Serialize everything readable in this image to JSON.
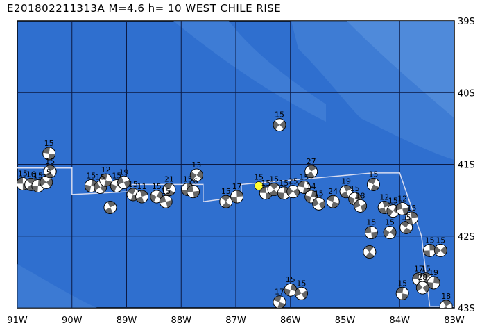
{
  "title": "E201802211313A  M=4.6  h= 10  WEST CHILE RISE",
  "map": {
    "lon_range": [
      -91,
      -83
    ],
    "lat_range": [
      -43,
      -39
    ],
    "lon_labels": [
      "91W",
      "90W",
      "89W",
      "88W",
      "87W",
      "86W",
      "85W",
      "84W",
      "83W"
    ],
    "lat_labels": [
      "39S",
      "40S",
      "41S",
      "42S",
      "43S"
    ],
    "colors": {
      "ocean": "#2f6fcf",
      "shallow": "#4a86d8",
      "grid": "#0b1a44",
      "ridge": "#d8dcf0",
      "highlight": "#ffff33"
    },
    "main_event": {
      "lon": -86.58,
      "lat": -41.3,
      "label": "15"
    },
    "events": [
      {
        "lon": -90.9,
        "lat": -41.27,
        "label": "15"
      },
      {
        "lon": -90.75,
        "lat": -41.28,
        "label": "16"
      },
      {
        "lon": -90.62,
        "lat": -41.3,
        "label": "15"
      },
      {
        "lon": -90.47,
        "lat": -41.25,
        "label": "15"
      },
      {
        "lon": -90.42,
        "lat": -40.85,
        "label": "15"
      },
      {
        "lon": -90.4,
        "lat": -41.1,
        "label": "15"
      },
      {
        "lon": -89.65,
        "lat": -41.3,
        "label": "15"
      },
      {
        "lon": -89.48,
        "lat": -41.32,
        "label": "15"
      },
      {
        "lon": -89.38,
        "lat": -41.22,
        "label": "12"
      },
      {
        "lon": -89.3,
        "lat": -41.6,
        "label": ""
      },
      {
        "lon": -89.18,
        "lat": -41.3,
        "label": "15"
      },
      {
        "lon": -89.05,
        "lat": -41.25,
        "label": "19"
      },
      {
        "lon": -88.88,
        "lat": -41.42,
        "label": "15"
      },
      {
        "lon": -88.72,
        "lat": -41.45,
        "label": "11"
      },
      {
        "lon": -88.45,
        "lat": -41.45,
        "label": "15"
      },
      {
        "lon": -88.28,
        "lat": -41.52,
        "label": "15"
      },
      {
        "lon": -88.22,
        "lat": -41.35,
        "label": "21"
      },
      {
        "lon": -87.88,
        "lat": -41.35,
        "label": "15"
      },
      {
        "lon": -87.72,
        "lat": -41.15,
        "label": "13"
      },
      {
        "lon": -87.78,
        "lat": -41.38,
        "label": "26"
      },
      {
        "lon": -87.18,
        "lat": -41.52,
        "label": "15"
      },
      {
        "lon": -86.98,
        "lat": -41.45,
        "label": "17"
      },
      {
        "lon": -86.2,
        "lat": -40.45,
        "label": "15"
      },
      {
        "lon": -86.45,
        "lat": -41.4,
        "label": "15"
      },
      {
        "lon": -86.3,
        "lat": -41.35,
        "label": "15"
      },
      {
        "lon": -86.12,
        "lat": -41.4,
        "label": "15"
      },
      {
        "lon": -85.95,
        "lat": -41.38,
        "label": "25"
      },
      {
        "lon": -85.75,
        "lat": -41.32,
        "label": "15"
      },
      {
        "lon": -85.62,
        "lat": -41.1,
        "label": "27"
      },
      {
        "lon": -85.62,
        "lat": -41.45,
        "label": "14"
      },
      {
        "lon": -85.48,
        "lat": -41.55,
        "label": "15"
      },
      {
        "lon": -85.22,
        "lat": -41.52,
        "label": "24"
      },
      {
        "lon": -84.98,
        "lat": -41.38,
        "label": "19"
      },
      {
        "lon": -84.82,
        "lat": -41.48,
        "label": "15"
      },
      {
        "lon": -84.72,
        "lat": -41.58,
        "label": "18"
      },
      {
        "lon": -84.48,
        "lat": -41.28,
        "label": "15"
      },
      {
        "lon": -84.28,
        "lat": -41.6,
        "label": "12"
      },
      {
        "lon": -84.12,
        "lat": -41.65,
        "label": "15"
      },
      {
        "lon": -83.95,
        "lat": -41.62,
        "label": "12"
      },
      {
        "lon": -83.88,
        "lat": -41.88,
        "label": "15"
      },
      {
        "lon": -83.78,
        "lat": -41.75,
        "label": "15"
      },
      {
        "lon": -84.18,
        "lat": -41.95,
        "label": "15"
      },
      {
        "lon": -84.52,
        "lat": -41.95,
        "label": "15"
      },
      {
        "lon": -84.55,
        "lat": -42.22,
        "label": ""
      },
      {
        "lon": -83.45,
        "lat": -42.2,
        "label": "15"
      },
      {
        "lon": -83.25,
        "lat": -42.2,
        "label": "15"
      },
      {
        "lon": -83.65,
        "lat": -42.6,
        "label": "17"
      },
      {
        "lon": -83.52,
        "lat": -42.6,
        "label": "15"
      },
      {
        "lon": -83.38,
        "lat": -42.65,
        "label": "19"
      },
      {
        "lon": -83.58,
        "lat": -42.72,
        "label": "28"
      },
      {
        "lon": -83.95,
        "lat": -42.8,
        "label": "15"
      },
      {
        "lon": -83.15,
        "lat": -42.98,
        "label": "18"
      },
      {
        "lon": -86.0,
        "lat": -42.75,
        "label": "15"
      },
      {
        "lon": -85.8,
        "lat": -42.8,
        "label": "15"
      },
      {
        "lon": -86.2,
        "lat": -42.92,
        "label": "17"
      }
    ]
  }
}
